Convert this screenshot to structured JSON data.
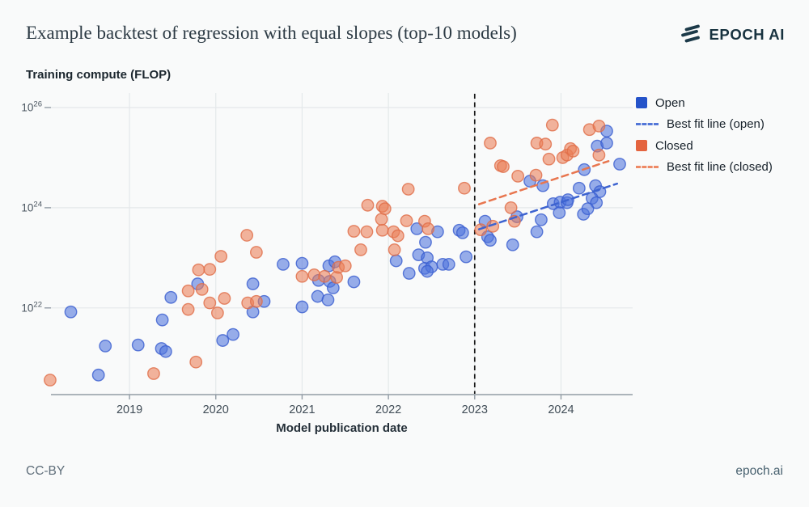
{
  "header": {
    "title": "Example backtest of regression with equal slopes (top-10 models)",
    "brand": "EPOCH AI"
  },
  "footer": {
    "license": "CC-BY",
    "site": "epoch.ai"
  },
  "colors": {
    "background": "#f9fafa",
    "open_blue": "#2553c9",
    "closed_orange": "#e4643f",
    "open_fit_line": "#3d63d0",
    "closed_fit_line": "#e8764f",
    "gridline": "#e4e8ea",
    "axis": "#929ca5",
    "cutoff": "#1a1a1a"
  },
  "legend": {
    "items": [
      {
        "label": "Open",
        "swatch": "square",
        "color": "#2553c9"
      },
      {
        "label": "Best fit line (open)",
        "swatch": "dash",
        "color": "#5377d8"
      },
      {
        "label": "Closed",
        "swatch": "square",
        "color": "#e4643f"
      },
      {
        "label": "Best fit line (closed)",
        "swatch": "dash",
        "color": "#ee8a66"
      }
    ]
  },
  "chart_data": {
    "type": "scatter",
    "title": "Example backtest of regression with equal slopes (top-10 models)",
    "ylabel": "Training compute (FLOP)",
    "xlabel": "Model publication date",
    "y_scale": "log10",
    "x_ticks": [
      2019,
      2020,
      2021,
      2022,
      2023,
      2024
    ],
    "y_tick_exponents": [
      22,
      24,
      26
    ],
    "x_range": [
      2018.09,
      2024.83
    ],
    "y_log_range": [
      20.27,
      26.29
    ],
    "grid": true,
    "legend_position": "right",
    "cutoff_year": 2023,
    "series": [
      {
        "name": "Open",
        "color": "#2553c9",
        "fill": "#4e74dd",
        "stroke": "#3a5ecf",
        "points": [
          [
            2018.32,
            21.92
          ],
          [
            2018.64,
            20.66
          ],
          [
            2018.72,
            21.24
          ],
          [
            2019.1,
            21.26
          ],
          [
            2019.38,
            21.76
          ],
          [
            2019.37,
            21.19
          ],
          [
            2019.42,
            21.13
          ],
          [
            2019.48,
            22.21
          ],
          [
            2019.79,
            22.48
          ],
          [
            2020.08,
            21.35
          ],
          [
            2020.2,
            21.47
          ],
          [
            2020.43,
            22.48
          ],
          [
            2020.56,
            22.13
          ],
          [
            2020.43,
            21.92
          ],
          [
            2020.78,
            22.87
          ],
          [
            2021.0,
            22.89
          ],
          [
            2021.0,
            22.02
          ],
          [
            2021.19,
            22.55
          ],
          [
            2021.32,
            22.53
          ],
          [
            2021.31,
            22.84
          ],
          [
            2021.38,
            22.92
          ],
          [
            2021.36,
            22.4
          ],
          [
            2021.18,
            22.23
          ],
          [
            2021.3,
            22.16
          ],
          [
            2021.6,
            22.52
          ],
          [
            2022.09,
            22.94
          ],
          [
            2022.33,
            23.58
          ],
          [
            2022.43,
            23.31
          ],
          [
            2022.35,
            23.06
          ],
          [
            2022.45,
            23.0
          ],
          [
            2022.24,
            22.69
          ],
          [
            2022.42,
            22.79
          ],
          [
            2022.5,
            22.82
          ],
          [
            2022.63,
            22.87
          ],
          [
            2022.57,
            23.52
          ],
          [
            2022.82,
            23.55
          ],
          [
            2022.86,
            23.5
          ],
          [
            2022.9,
            23.02
          ],
          [
            2022.45,
            22.73
          ],
          [
            2022.7,
            22.87
          ],
          [
            2023.12,
            23.73
          ],
          [
            2023.15,
            23.42
          ],
          [
            2023.18,
            23.35
          ],
          [
            2023.44,
            23.26
          ],
          [
            2023.49,
            23.82
          ],
          [
            2023.64,
            24.53
          ],
          [
            2023.79,
            24.44
          ],
          [
            2023.91,
            24.08
          ],
          [
            2023.99,
            24.11
          ],
          [
            2024.07,
            24.1
          ],
          [
            2023.98,
            23.9
          ],
          [
            2023.72,
            23.52
          ],
          [
            2023.77,
            23.76
          ],
          [
            2024.26,
            23.87
          ],
          [
            2024.27,
            24.76
          ],
          [
            2024.21,
            24.39
          ],
          [
            2024.4,
            24.44
          ],
          [
            2024.45,
            24.32
          ],
          [
            2024.36,
            24.19
          ],
          [
            2024.41,
            24.1
          ],
          [
            2024.31,
            23.98
          ],
          [
            2024.08,
            24.16
          ],
          [
            2024.68,
            24.87
          ],
          [
            2024.42,
            25.23
          ],
          [
            2024.53,
            25.29
          ],
          [
            2024.53,
            25.53
          ]
        ]
      },
      {
        "name": "Closed",
        "color": "#e4643f",
        "fill": "#ea7e57",
        "stroke": "#e06d47",
        "points": [
          [
            2018.08,
            20.56
          ],
          [
            2019.28,
            20.69
          ],
          [
            2019.77,
            20.92
          ],
          [
            2019.68,
            21.97
          ],
          [
            2019.93,
            22.1
          ],
          [
            2020.02,
            21.9
          ],
          [
            2020.1,
            22.19
          ],
          [
            2020.37,
            22.1
          ],
          [
            2020.47,
            22.13
          ],
          [
            2019.68,
            22.34
          ],
          [
            2019.84,
            22.37
          ],
          [
            2019.8,
            22.76
          ],
          [
            2019.93,
            22.77
          ],
          [
            2020.06,
            23.03
          ],
          [
            2020.47,
            23.11
          ],
          [
            2020.36,
            23.45
          ],
          [
            2021.0,
            22.63
          ],
          [
            2021.14,
            22.66
          ],
          [
            2021.26,
            22.63
          ],
          [
            2021.4,
            22.61
          ],
          [
            2021.42,
            22.81
          ],
          [
            2021.5,
            22.84
          ],
          [
            2021.68,
            23.16
          ],
          [
            2021.6,
            23.53
          ],
          [
            2021.75,
            23.52
          ],
          [
            2021.93,
            23.55
          ],
          [
            2022.06,
            23.52
          ],
          [
            2022.11,
            23.44
          ],
          [
            2022.07,
            23.16
          ],
          [
            2021.76,
            24.05
          ],
          [
            2021.93,
            24.03
          ],
          [
            2021.96,
            23.98
          ],
          [
            2021.92,
            23.77
          ],
          [
            2022.21,
            23.74
          ],
          [
            2022.23,
            24.37
          ],
          [
            2022.42,
            23.73
          ],
          [
            2022.46,
            23.58
          ],
          [
            2022.88,
            24.39
          ],
          [
            2023.07,
            23.56
          ],
          [
            2023.21,
            23.63
          ],
          [
            2023.42,
            24.0
          ],
          [
            2023.46,
            23.73
          ],
          [
            2023.3,
            24.84
          ],
          [
            2023.18,
            25.29
          ],
          [
            2023.33,
            24.82
          ],
          [
            2023.5,
            24.63
          ],
          [
            2023.71,
            24.65
          ],
          [
            2023.72,
            25.29
          ],
          [
            2023.82,
            25.27
          ],
          [
            2023.9,
            25.65
          ],
          [
            2023.86,
            24.97
          ],
          [
            2024.02,
            25.0
          ],
          [
            2024.07,
            25.05
          ],
          [
            2024.11,
            25.18
          ],
          [
            2024.14,
            25.13
          ],
          [
            2024.33,
            25.56
          ],
          [
            2024.44,
            25.63
          ],
          [
            2024.44,
            25.05
          ]
        ]
      }
    ],
    "fit_lines": [
      {
        "name": "Best fit line (open)",
        "color": "#3d63d0",
        "x": [
          2023.05,
          2024.65
        ],
        "y_log": [
          23.57,
          24.48
        ]
      },
      {
        "name": "Best fit line (closed)",
        "color": "#e8764f",
        "x": [
          2023.05,
          2024.55
        ],
        "y_log": [
          24.07,
          24.93
        ]
      }
    ]
  }
}
